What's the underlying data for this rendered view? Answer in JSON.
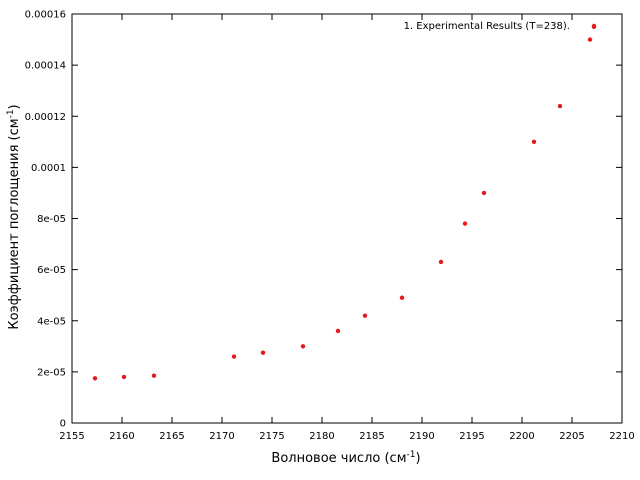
{
  "chart_data": {
    "type": "scatter",
    "title": "",
    "xlabel_main": "Волновое число (см",
    "xlabel_sup": "-1",
    "xlabel_tail": ")",
    "ylabel_main": "Коэффициент поглощения (см",
    "ylabel_sup": "-1",
    "ylabel_tail": ")",
    "xlim": [
      2155,
      2210
    ],
    "ylim": [
      0,
      0.00016
    ],
    "xticks": [
      2155,
      2160,
      2165,
      2170,
      2175,
      2180,
      2185,
      2190,
      2195,
      2200,
      2205,
      2210
    ],
    "xtick_labels": [
      "2155",
      "2160",
      "2165",
      "2170",
      "2175",
      "2180",
      "2185",
      "2190",
      "2195",
      "2200",
      "2205",
      "2210"
    ],
    "yticks": [
      0,
      2e-05,
      4e-05,
      6e-05,
      8e-05,
      0.0001,
      0.00012,
      0.00014,
      0.00016
    ],
    "ytick_labels": [
      "0",
      "2e-05",
      "4e-05",
      "6e-05",
      "8e-05",
      "0.0001",
      "0.00012",
      "0.00014",
      "0.00016"
    ],
    "grid": false,
    "legend_position": "top-right",
    "series": [
      {
        "name": "1. Experimental Results (T=238).",
        "color": "#e41a1c",
        "x": [
          2157.3,
          2160.2,
          2163.2,
          2171.2,
          2174.1,
          2178.1,
          2181.6,
          2184.3,
          2188.0,
          2191.9,
          2194.3,
          2196.2,
          2201.2,
          2203.8,
          2206.8,
          2207.2
        ],
        "y": [
          1.75e-05,
          1.8e-05,
          1.85e-05,
          2.6e-05,
          2.75e-05,
          3e-05,
          3.6e-05,
          4.2e-05,
          4.9e-05,
          6.3e-05,
          7.8e-05,
          9e-05,
          0.00011,
          0.000124,
          0.00015,
          0.000155
        ]
      }
    ]
  }
}
